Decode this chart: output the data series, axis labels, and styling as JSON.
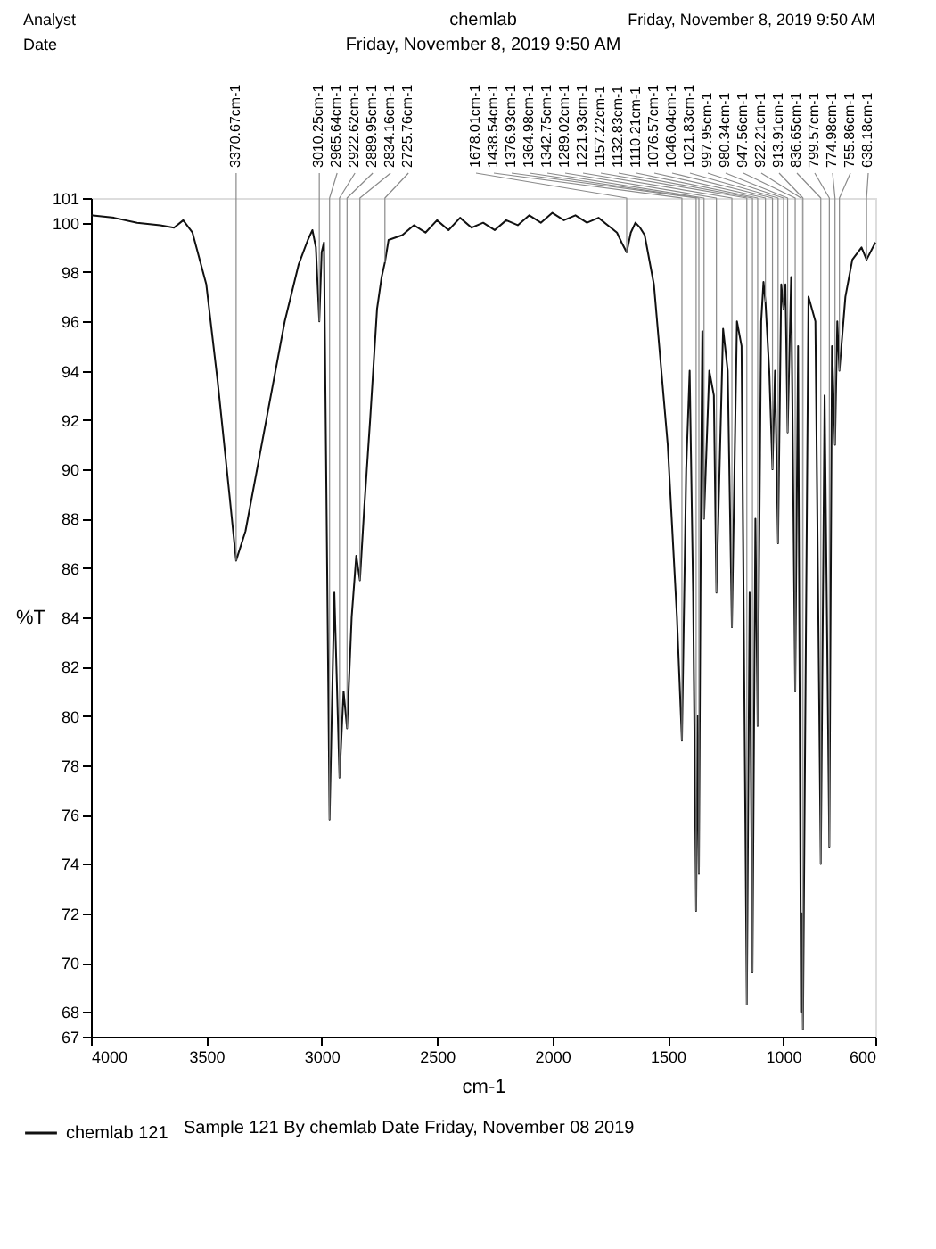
{
  "chart_data": {
    "type": "line",
    "title": "chemlab",
    "subtitle": "Friday, November 8, 2019 9:50 AM",
    "xlabel": "cm-1",
    "ylabel": "%T",
    "xlim": [
      4000,
      600
    ],
    "ylim": [
      67,
      101
    ],
    "xticks": [
      4000,
      3500,
      3000,
      2500,
      2000,
      1500,
      1000,
      600
    ],
    "yticks": [
      67,
      68,
      70,
      72,
      74,
      76,
      78,
      80,
      82,
      84,
      86,
      88,
      90,
      92,
      94,
      96,
      98,
      100,
      101
    ],
    "legend": "bottom left",
    "line_style": "solid",
    "x": [
      4000,
      3900,
      3800,
      3700,
      3640,
      3600,
      3560,
      3500,
      3450,
      3400,
      3370.67,
      3330,
      3280,
      3220,
      3160,
      3100,
      3060,
      3040,
      3025,
      3010.25,
      3000,
      2990,
      2965.64,
      2945,
      2922.62,
      2905,
      2889.95,
      2870,
      2850,
      2834.16,
      2815,
      2790,
      2760,
      2740,
      2725.76,
      2710,
      2650,
      2600,
      2550,
      2500,
      2450,
      2400,
      2350,
      2300,
      2250,
      2200,
      2150,
      2100,
      2050,
      2000,
      1950,
      1900,
      1850,
      1800,
      1760,
      1720,
      1700,
      1678.01,
      1660,
      1640,
      1620,
      1600,
      1560,
      1500,
      1460,
      1438.54,
      1420,
      1405,
      1390,
      1376.93,
      1370,
      1364.98,
      1355,
      1350,
      1342.75,
      1320,
      1300,
      1289.02,
      1260,
      1240,
      1221.93,
      1200,
      1180,
      1157.22,
      1145,
      1132.83,
      1120,
      1110.21,
      1095,
      1085,
      1076.57,
      1060,
      1046.04,
      1035,
      1021.83,
      1008,
      997.95,
      990,
      980.34,
      965,
      947.56,
      935,
      922.21,
      918,
      913.91,
      890,
      860,
      836.65,
      820,
      799.57,
      788,
      774.98,
      765,
      755.86,
      730,
      700,
      660,
      638.18,
      600
    ],
    "series": [
      {
        "name": "chemlab 121",
        "color": "#111111",
        "values": [
          100.3,
          100.2,
          100.0,
          99.9,
          99.8,
          100.1,
          99.6,
          97.5,
          93.5,
          89,
          86.3,
          87.5,
          90,
          93,
          96,
          98.3,
          99.3,
          99.7,
          99.0,
          96.0,
          98.8,
          99.2,
          75.8,
          85.0,
          77.5,
          81.0,
          79.5,
          84.0,
          86.5,
          85.5,
          88.5,
          92,
          96.5,
          97.8,
          98.4,
          99.3,
          99.5,
          99.9,
          99.6,
          100.1,
          99.7,
          100.2,
          99.8,
          100.0,
          99.7,
          100.1,
          99.9,
          100.3,
          100.0,
          100.4,
          100.1,
          100.3,
          100.0,
          100.2,
          99.9,
          99.6,
          99.2,
          98.8,
          99.6,
          100.0,
          99.8,
          99.5,
          97.5,
          91,
          84,
          79,
          90,
          94,
          85,
          72.1,
          80,
          73.6,
          90,
          95.6,
          88,
          94,
          93,
          85,
          95.7,
          94,
          83.6,
          96,
          95,
          68.3,
          85,
          69.6,
          88,
          79.6,
          96,
          97.6,
          96.8,
          94,
          90,
          94,
          87,
          97.5,
          96.5,
          97.5,
          91.5,
          97.8,
          81,
          95,
          68,
          72,
          67.3,
          97,
          96,
          74,
          93,
          74.7,
          95,
          91,
          96,
          94,
          97,
          98.5,
          99,
          98.5,
          99.2
        ]
      }
    ],
    "annotations": [
      {
        "text": "3370.67cm-1",
        "x": 3370.67,
        "y": 86.3
      },
      {
        "text": "3010.25cm-1",
        "x": 3010.25,
        "y": 96.0
      },
      {
        "text": "2965.64cm-1",
        "x": 2965.64,
        "y": 75.8
      },
      {
        "text": "2922.62cm-1",
        "x": 2922.62,
        "y": 77.5
      },
      {
        "text": "2889.95cm-1",
        "x": 2889.95,
        "y": 79.5
      },
      {
        "text": "2834.16cm-1",
        "x": 2834.16,
        "y": 85.5
      },
      {
        "text": "2725.76cm-1",
        "x": 2725.76,
        "y": 98.4
      },
      {
        "text": "1678.01cm-1",
        "x": 1678.01,
        "y": 98.8
      },
      {
        "text": "1438.54cm-1",
        "x": 1438.54,
        "y": 79
      },
      {
        "text": "1376.93cm-1",
        "x": 1376.93,
        "y": 72.1
      },
      {
        "text": "1364.98cm-1",
        "x": 1364.98,
        "y": 73.6
      },
      {
        "text": "1342.75cm-1",
        "x": 1342.75,
        "y": 88
      },
      {
        "text": "1289.02cm-1",
        "x": 1289.02,
        "y": 85
      },
      {
        "text": "1221.93cm-1",
        "x": 1221.93,
        "y": 83.6
      },
      {
        "text": "1157.22cm-1",
        "x": 1157.22,
        "y": 68.3
      },
      {
        "text": "1132.83cm-1",
        "x": 1132.83,
        "y": 69.6
      },
      {
        "text": "1110.21cm-1",
        "x": 1110.21,
        "y": 79.6
      },
      {
        "text": "1076.57cm-1",
        "x": 1076.57,
        "y": 96.8
      },
      {
        "text": "1046.04cm-1",
        "x": 1046.04,
        "y": 90
      },
      {
        "text": "1021.83cm-1",
        "x": 1021.83,
        "y": 87
      },
      {
        "text": "997.95cm-1",
        "x": 997.95,
        "y": 96.5
      },
      {
        "text": "980.34cm-1",
        "x": 980.34,
        "y": 91.5
      },
      {
        "text": "947.56cm-1",
        "x": 947.56,
        "y": 81
      },
      {
        "text": "922.21cm-1",
        "x": 922.21,
        "y": 68
      },
      {
        "text": "913.91cm-1",
        "x": 913.91,
        "y": 67.3
      },
      {
        "text": "836.65cm-1",
        "x": 836.65,
        "y": 74
      },
      {
        "text": "799.57cm-1",
        "x": 799.57,
        "y": 74.7
      },
      {
        "text": "774.98cm-1",
        "x": 774.98,
        "y": 91
      },
      {
        "text": "755.86cm-1",
        "x": 755.86,
        "y": 94
      },
      {
        "text": "638.18cm-1",
        "x": 638.18,
        "y": 98.5
      },
      "Analyst",
      "Date",
      "Friday, November 8, 2019 9:50 AM",
      "Sample 121 By chemlab Date Friday, November 08 2019"
    ]
  }
}
